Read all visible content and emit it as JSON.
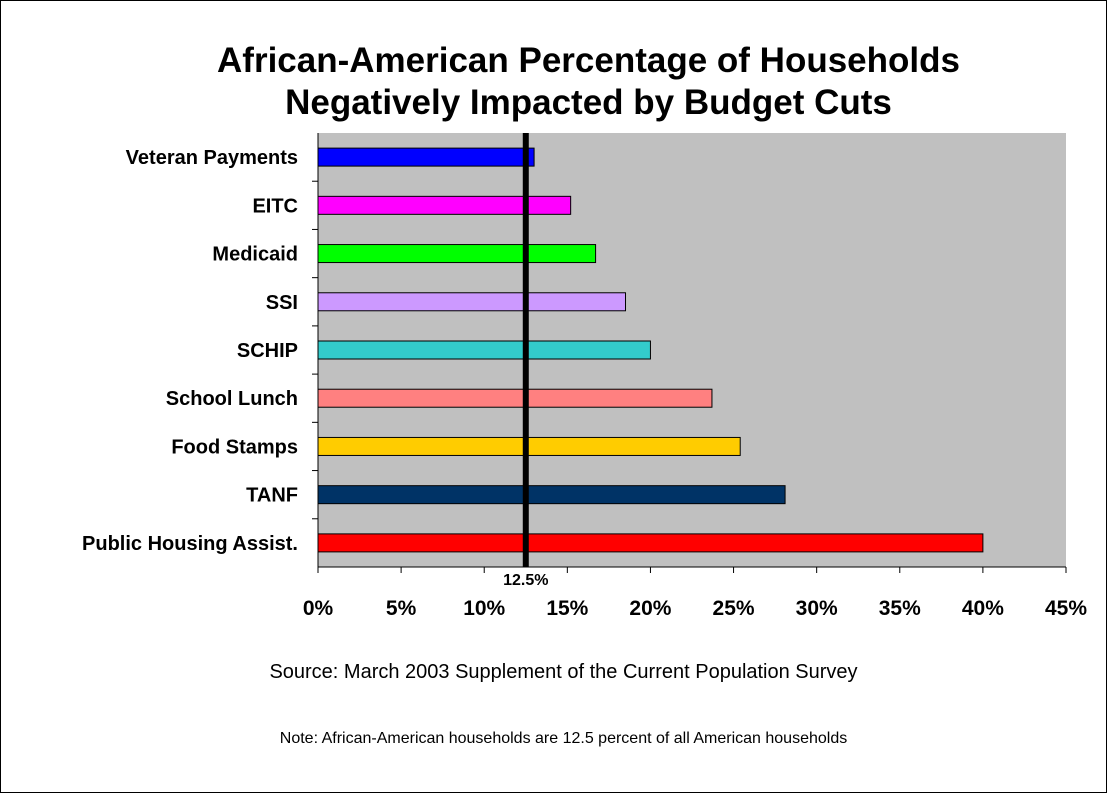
{
  "chart_data": {
    "type": "bar",
    "orientation": "horizontal",
    "title_lines": [
      "African-American Percentage of Households",
      "Negatively Impacted by Budget Cuts"
    ],
    "categories": [
      "Veteran Payments",
      "EITC",
      "Medicaid",
      "SSI",
      "SCHIP",
      "School Lunch",
      "Food Stamps",
      "TANF",
      "Public Housing Assist."
    ],
    "values": [
      13.0,
      15.2,
      16.7,
      18.5,
      20.0,
      23.7,
      25.4,
      28.1,
      40.0
    ],
    "bar_colors": [
      "#0000ff",
      "#ff00ff",
      "#00ff00",
      "#cc99ff",
      "#33cccc",
      "#ff8080",
      "#ffcc00",
      "#003366",
      "#ff0000"
    ],
    "x_ticks": [
      0,
      5,
      10,
      15,
      20,
      25,
      30,
      35,
      40,
      45
    ],
    "x_tick_labels": [
      "0%",
      "5%",
      "10%",
      "15%",
      "20%",
      "25%",
      "30%",
      "35%",
      "40%",
      "45%"
    ],
    "xlim": [
      0,
      45
    ],
    "plot_background": "#c0c0c0",
    "reference_line": {
      "value": 12.5,
      "label": "12.5%"
    },
    "grid": false,
    "source": "Source: March 2003 Supplement of the Current Population Survey",
    "note": "Note: African-American households are 12.5 percent of all American households"
  }
}
